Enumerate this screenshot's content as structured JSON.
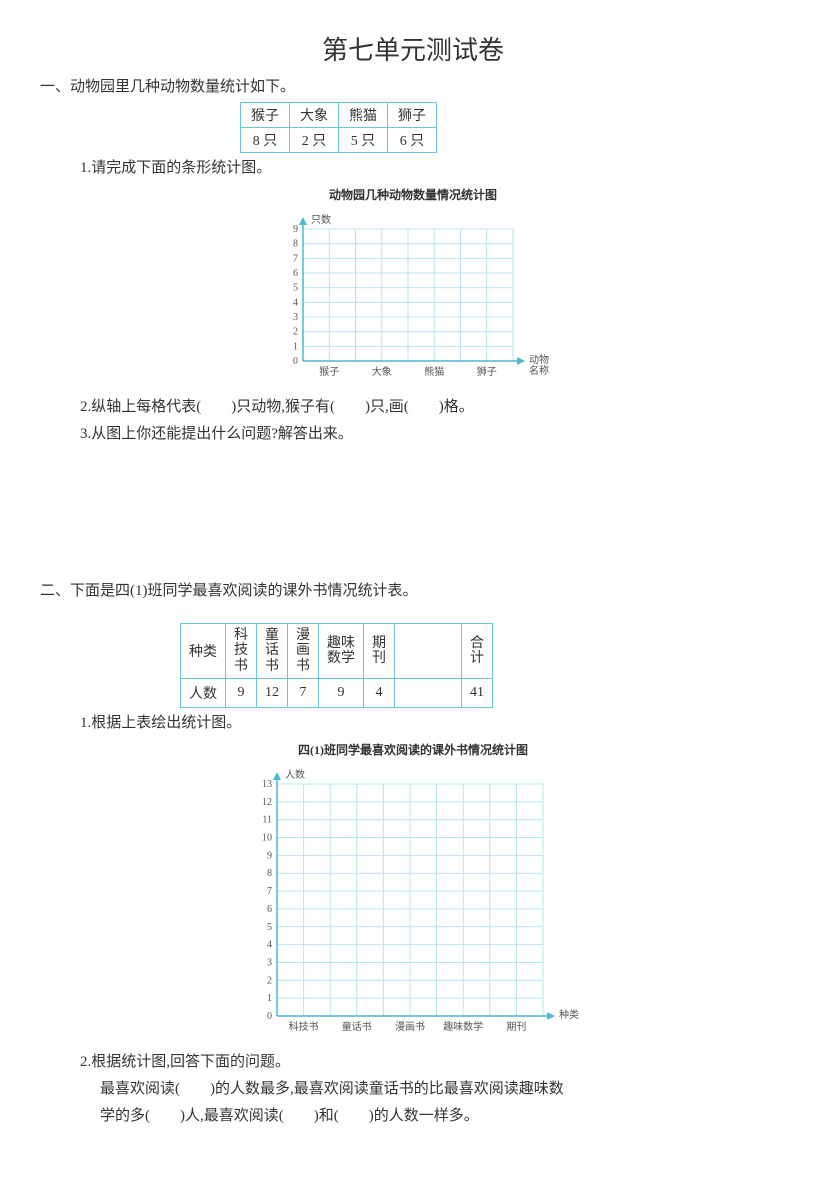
{
  "title": "第七单元测试卷",
  "section1": {
    "heading": "一、动物园里几种动物数量统计如下。",
    "table": {
      "cols": [
        "猴子",
        "大象",
        "熊猫",
        "狮子"
      ],
      "vals": [
        "8 只",
        "2 只",
        "5 只",
        "6 只"
      ]
    },
    "q1": "1.请完成下面的条形统计图。",
    "chart": {
      "title": "动物园几种动物数量情况统计图",
      "ylabel": "只数",
      "yticks": [
        "0",
        "1",
        "2",
        "3",
        "4",
        "5",
        "6",
        "7",
        "8",
        "9"
      ],
      "xlabel": "动物\n名称",
      "xticks": [
        "猴子",
        "大象",
        "熊猫",
        "狮子"
      ],
      "ymax": 9,
      "grid_cols": 8,
      "grid_rows": 9,
      "axis_color": "#4ab8d0",
      "grid_color": "#b9e4ee",
      "text_color": "#555"
    },
    "q2": "2.纵轴上每格代表(　　)只动物,猴子有(　　)只,画(　　)格。",
    "q3": "3.从图上你还能提出什么问题?解答出来。"
  },
  "section2": {
    "heading": "二、下面是四(1)班同学最喜欢阅读的课外书情况统计表。",
    "table": {
      "header": [
        "种类",
        "科\n技\n书",
        "童\n话\n书",
        "漫\n画\n书",
        "趣味\n数学",
        "期\n刊",
        "",
        "合\n计"
      ],
      "row_label": "人数",
      "vals": [
        "9",
        "12",
        "7",
        "9",
        "4",
        "",
        "41"
      ]
    },
    "q1": "1.根据上表绘出统计图。",
    "chart": {
      "title": "四(1)班同学最喜欢阅读的课外书情况统计图",
      "ylabel": "人数",
      "yticks": [
        "0",
        "1",
        "2",
        "3",
        "4",
        "5",
        "6",
        "7",
        "8",
        "9",
        "10",
        "11",
        "12",
        "13"
      ],
      "xlabel": "种类",
      "xticks": [
        "科技书",
        "童话书",
        "漫画书",
        "趣味数学",
        "期刊"
      ],
      "ymax": 13,
      "grid_cols": 10,
      "grid_rows": 13,
      "axis_color": "#4ab8d0",
      "grid_color": "#b9e4ee",
      "text_color": "#555"
    },
    "q2": "2.根据统计图,回答下面的问题。",
    "q2a": "最喜欢阅读(　　)的人数最多,最喜欢阅读童话书的比最喜欢阅读趣味数",
    "q2b": "学的多(　　)人,最喜欢阅读(　　)和(　　)的人数一样多。"
  }
}
